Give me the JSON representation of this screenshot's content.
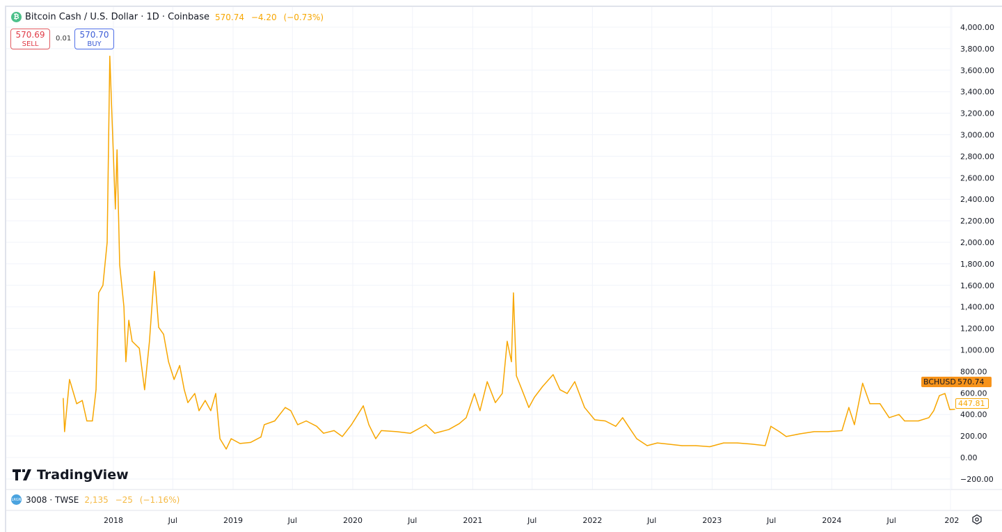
{
  "header": {
    "symbol_icon": "bitcoin-cash-icon",
    "title": "Bitcoin Cash / U.S. Dollar · 1D · Coinbase",
    "last": "570.74",
    "change": "−4.20",
    "change_pct": "(−0.73%)",
    "sell_price": "570.69",
    "sell_label": "SELL",
    "spread": "0.01",
    "buy_price": "570.70",
    "buy_label": "BUY"
  },
  "logo": "TradingView",
  "compare": {
    "symbol": "3008 · TWSE",
    "last": "2,135",
    "change": "−25",
    "change_pct": "(−1.16%)"
  },
  "price_tags": {
    "symbol": "BCHUSD",
    "last": "570.74",
    "secondary": "447.81"
  },
  "colors": {
    "line": "#f7a600",
    "sell": "#e03c47",
    "buy": "#3b5cd6",
    "grid": "#f0f3fa"
  },
  "chart_data": {
    "type": "line",
    "title": "Bitcoin Cash / U.S. Dollar · 1D · Coinbase",
    "xlabel": "",
    "ylabel": "",
    "ylim": [
      -200,
      4000
    ],
    "grid": true,
    "y_ticks": [
      "4,000.00",
      "3,800.00",
      "3,600.00",
      "3,400.00",
      "3,200.00",
      "3,000.00",
      "2,800.00",
      "2,600.00",
      "2,400.00",
      "2,200.00",
      "2,000.00",
      "1,800.00",
      "1,600.00",
      "1,400.00",
      "1,200.00",
      "1,000.00",
      "800.00",
      "600.00",
      "400.00",
      "200.00",
      "0.00",
      "−200.00"
    ],
    "y_tick_values": [
      4000,
      3800,
      3600,
      3400,
      3200,
      3000,
      2800,
      2600,
      2400,
      2200,
      2000,
      1800,
      1600,
      1400,
      1200,
      1000,
      800,
      600,
      400,
      200,
      0,
      -200
    ],
    "x_ticks": [
      {
        "label": "2018",
        "date": "2018-01-01"
      },
      {
        "label": "Jul",
        "date": "2018-07-01"
      },
      {
        "label": "2019",
        "date": "2019-01-01"
      },
      {
        "label": "Jul",
        "date": "2019-07-01"
      },
      {
        "label": "2020",
        "date": "2020-01-01"
      },
      {
        "label": "Jul",
        "date": "2020-07-01"
      },
      {
        "label": "2021",
        "date": "2021-01-01"
      },
      {
        "label": "Jul",
        "date": "2021-07-01"
      },
      {
        "label": "2022",
        "date": "2022-01-01"
      },
      {
        "label": "Jul",
        "date": "2022-07-01"
      },
      {
        "label": "2023",
        "date": "2023-01-01"
      },
      {
        "label": "Jul",
        "date": "2023-07-01"
      },
      {
        "label": "2024",
        "date": "2024-01-01"
      },
      {
        "label": "Jul",
        "date": "2024-07-01"
      },
      {
        "label": "202",
        "date": "2025-01-01"
      }
    ],
    "series": [
      {
        "values": [
          [
            "2017-08-01",
            550
          ],
          [
            "2017-08-05",
            240
          ],
          [
            "2017-08-20",
            725
          ],
          [
            "2017-09-11",
            500
          ],
          [
            "2017-09-28",
            530
          ],
          [
            "2017-10-12",
            340
          ],
          [
            "2017-10-29",
            340
          ],
          [
            "2017-11-09",
            630
          ],
          [
            "2017-11-17",
            1530
          ],
          [
            "2017-11-30",
            1600
          ],
          [
            "2017-12-13",
            2000
          ],
          [
            "2017-12-21",
            3730
          ],
          [
            "2017-12-30",
            2960
          ],
          [
            "2018-01-07",
            2310
          ],
          [
            "2018-01-12",
            2860
          ],
          [
            "2018-01-20",
            1790
          ],
          [
            "2018-02-02",
            1400
          ],
          [
            "2018-02-08",
            890
          ],
          [
            "2018-02-17",
            1275
          ],
          [
            "2018-02-27",
            1080
          ],
          [
            "2018-03-21",
            1015
          ],
          [
            "2018-04-06",
            630
          ],
          [
            "2018-04-21",
            1080
          ],
          [
            "2018-05-06",
            1730
          ],
          [
            "2018-05-19",
            1210
          ],
          [
            "2018-06-03",
            1145
          ],
          [
            "2018-06-18",
            890
          ],
          [
            "2018-07-05",
            725
          ],
          [
            "2018-07-22",
            855
          ],
          [
            "2018-08-05",
            630
          ],
          [
            "2018-08-16",
            510
          ],
          [
            "2018-09-06",
            595
          ],
          [
            "2018-09-19",
            435
          ],
          [
            "2018-10-08",
            530
          ],
          [
            "2018-10-25",
            435
          ],
          [
            "2018-11-09",
            595
          ],
          [
            "2018-11-22",
            175
          ],
          [
            "2018-12-11",
            78
          ],
          [
            "2018-12-26",
            175
          ],
          [
            "2019-01-22",
            130
          ],
          [
            "2019-02-23",
            140
          ],
          [
            "2019-03-27",
            190
          ],
          [
            "2019-04-06",
            305
          ],
          [
            "2019-05-08",
            340
          ],
          [
            "2019-06-09",
            465
          ],
          [
            "2019-06-26",
            435
          ],
          [
            "2019-07-17",
            305
          ],
          [
            "2019-08-12",
            340
          ],
          [
            "2019-09-13",
            290
          ],
          [
            "2019-10-04",
            225
          ],
          [
            "2019-11-05",
            250
          ],
          [
            "2019-11-30",
            195
          ],
          [
            "2019-12-28",
            305
          ],
          [
            "2020-02-02",
            480
          ],
          [
            "2020-02-19",
            305
          ],
          [
            "2020-03-11",
            175
          ],
          [
            "2020-03-28",
            250
          ],
          [
            "2020-05-14",
            240
          ],
          [
            "2020-06-25",
            225
          ],
          [
            "2020-08-11",
            305
          ],
          [
            "2020-09-07",
            225
          ],
          [
            "2020-10-20",
            260
          ],
          [
            "2020-11-21",
            315
          ],
          [
            "2020-12-12",
            370
          ],
          [
            "2021-01-06",
            595
          ],
          [
            "2021-01-23",
            435
          ],
          [
            "2021-02-14",
            705
          ],
          [
            "2021-03-11",
            510
          ],
          [
            "2021-04-01",
            595
          ],
          [
            "2021-04-16",
            1080
          ],
          [
            "2021-04-29",
            890
          ],
          [
            "2021-05-05",
            1530
          ],
          [
            "2021-05-14",
            760
          ],
          [
            "2021-05-31",
            630
          ],
          [
            "2021-06-21",
            465
          ],
          [
            "2021-07-08",
            560
          ],
          [
            "2021-08-02",
            660
          ],
          [
            "2021-09-03",
            770
          ],
          [
            "2021-09-24",
            630
          ],
          [
            "2021-10-16",
            595
          ],
          [
            "2021-11-08",
            705
          ],
          [
            "2021-12-08",
            465
          ],
          [
            "2022-01-08",
            350
          ],
          [
            "2022-02-09",
            340
          ],
          [
            "2022-03-13",
            290
          ],
          [
            "2022-04-03",
            370
          ],
          [
            "2022-04-25",
            270
          ],
          [
            "2022-05-16",
            175
          ],
          [
            "2022-06-17",
            110
          ],
          [
            "2022-07-18",
            135
          ],
          [
            "2022-08-19",
            125
          ],
          [
            "2022-10-01",
            110
          ],
          [
            "2022-11-12",
            110
          ],
          [
            "2022-12-25",
            100
          ],
          [
            "2023-02-05",
            135
          ],
          [
            "2023-03-19",
            135
          ],
          [
            "2023-05-01",
            125
          ],
          [
            "2023-06-12",
            110
          ],
          [
            "2023-06-29",
            290
          ],
          [
            "2023-07-25",
            240
          ],
          [
            "2023-08-15",
            195
          ],
          [
            "2023-09-26",
            220
          ],
          [
            "2023-11-08",
            240
          ],
          [
            "2023-12-20",
            240
          ],
          [
            "2024-02-01",
            250
          ],
          [
            "2024-02-22",
            465
          ],
          [
            "2024-03-10",
            305
          ],
          [
            "2024-04-04",
            690
          ],
          [
            "2024-04-26",
            500
          ],
          [
            "2024-05-27",
            500
          ],
          [
            "2024-06-24",
            370
          ],
          [
            "2024-07-24",
            400
          ],
          [
            "2024-08-10",
            340
          ],
          [
            "2024-09-21",
            340
          ],
          [
            "2024-10-23",
            370
          ],
          [
            "2024-11-07",
            435
          ],
          [
            "2024-11-24",
            575
          ],
          [
            "2024-12-11",
            595
          ],
          [
            "2024-12-26",
            445
          ],
          [
            "2025-01-10",
            447.81
          ]
        ]
      }
    ]
  }
}
